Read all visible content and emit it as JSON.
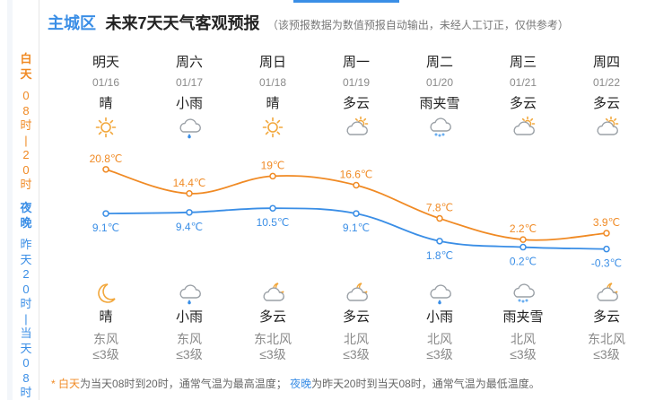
{
  "header": {
    "region": "主城区",
    "title": "未来7天天气客观预报",
    "note": "（该预报数据为数值预报自动输出，未经人工订正，仅供参考）"
  },
  "sidebar": {
    "day_label": "白天",
    "day_range": "08时|20时",
    "night_label": "夜晚",
    "night_range": "昨天20时|当天08时"
  },
  "days": [
    {
      "name": "明天",
      "date": "01/16",
      "weather": "晴",
      "icon": "sun-icon",
      "hi": "20.8℃",
      "lo": "9.1℃",
      "night_icon": "moon-icon",
      "night_weather": "晴",
      "wind": "东风",
      "level": "≤3级"
    },
    {
      "name": "周六",
      "date": "01/17",
      "weather": "小雨",
      "icon": "cloud-rain-icon",
      "hi": "14.4℃",
      "lo": "9.4℃",
      "night_icon": "cloud-rain-icon",
      "night_weather": "小雨",
      "wind": "东风",
      "level": "≤3级"
    },
    {
      "name": "周日",
      "date": "01/18",
      "weather": "晴",
      "icon": "sun-icon",
      "hi": "19℃",
      "lo": "10.5℃",
      "night_icon": "cloud-moon-icon",
      "night_weather": "多云",
      "wind": "东北风",
      "level": "≤3级"
    },
    {
      "name": "周一",
      "date": "01/19",
      "weather": "多云",
      "icon": "cloud-sun-icon",
      "hi": "16.6℃",
      "lo": "9.1℃",
      "night_icon": "cloud-moon-icon",
      "night_weather": "多云",
      "wind": "北风",
      "level": "≤3级"
    },
    {
      "name": "周二",
      "date": "01/20",
      "weather": "雨夹雪",
      "icon": "cloud-sleet-icon",
      "hi": "7.8℃",
      "lo": "1.8℃",
      "night_icon": "cloud-rain-icon",
      "night_weather": "小雨",
      "wind": "北风",
      "level": "≤3级"
    },
    {
      "name": "周三",
      "date": "01/21",
      "weather": "多云",
      "icon": "cloud-sun-icon",
      "hi": "2.2℃",
      "lo": "0.2℃",
      "night_icon": "cloud-sleet-icon",
      "night_weather": "雨夹雪",
      "wind": "北风",
      "level": "≤3级"
    },
    {
      "name": "周四",
      "date": "01/22",
      "weather": "多云",
      "icon": "cloud-sun-icon",
      "hi": "3.9℃",
      "lo": "-0.3℃",
      "night_icon": "cloud-moon-icon",
      "night_weather": "多云",
      "wind": "东北风",
      "level": "≤3级"
    }
  ],
  "chart_data": {
    "type": "line",
    "categories": [
      "01/16",
      "01/17",
      "01/18",
      "01/19",
      "01/20",
      "01/21",
      "01/22"
    ],
    "series": [
      {
        "values": [
          20.8,
          14.4,
          19,
          16.6,
          7.8,
          2.2,
          3.9
        ],
        "color": "#f08a24"
      },
      {
        "values": [
          9.1,
          9.4,
          10.5,
          9.1,
          1.8,
          0.2,
          -0.3
        ],
        "color": "#3a8ee6"
      }
    ],
    "grid": false
  },
  "footnote": {
    "star": "*",
    "day_term": "白天",
    "day_text": "为当天08时到20时，通常气温为最高温度；",
    "night_term": "夜晚",
    "night_text": "为昨天20时到当天08时，通常气温为最低温度。"
  },
  "colors": {
    "accent": "#3a8ee6",
    "warm": "#f08a24"
  }
}
